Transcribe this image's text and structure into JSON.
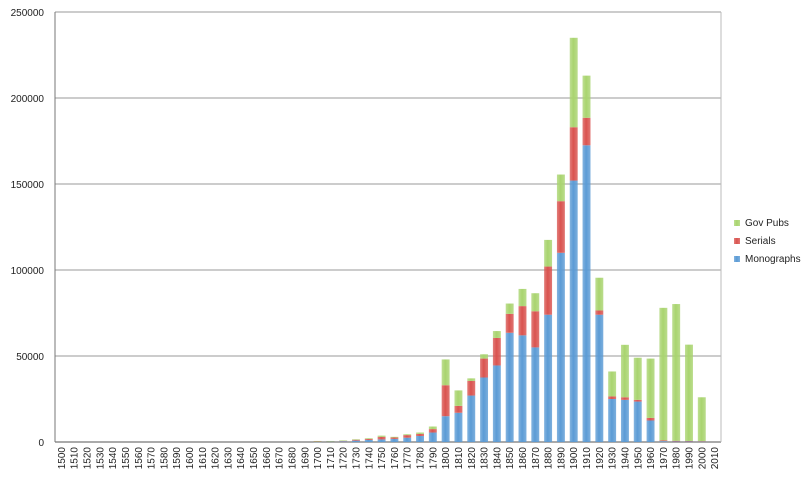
{
  "chart_data": {
    "type": "bar",
    "stacked": true,
    "title": "",
    "xlabel": "",
    "ylabel": "",
    "ylim": [
      0,
      250000
    ],
    "yticks": [
      0,
      50000,
      100000,
      150000,
      200000,
      250000
    ],
    "grid": true,
    "legend_position": "right",
    "categories": [
      "1500",
      "1510",
      "1520",
      "1530",
      "1540",
      "1550",
      "1560",
      "1570",
      "1580",
      "1590",
      "1600",
      "1610",
      "1620",
      "1630",
      "1640",
      "1650",
      "1660",
      "1670",
      "1680",
      "1690",
      "1700",
      "1710",
      "1720",
      "1730",
      "1740",
      "1750",
      "1760",
      "1770",
      "1780",
      "1790",
      "1800",
      "1810",
      "1820",
      "1830",
      "1840",
      "1850",
      "1860",
      "1870",
      "1880",
      "1890",
      "1900",
      "1910",
      "1920",
      "1930",
      "1940",
      "1950",
      "1960",
      "1970",
      "1980",
      "1990",
      "2000",
      "2010"
    ],
    "series": [
      {
        "name": "Monographs",
        "color": "#5b9bd5",
        "values": [
          0,
          0,
          0,
          0,
          0,
          0,
          0,
          0,
          0,
          0,
          0,
          0,
          0,
          0,
          0,
          0,
          0,
          0,
          0,
          0,
          200,
          300,
          400,
          800,
          1200,
          1500,
          1800,
          2500,
          3500,
          5500,
          15000,
          17000,
          27000,
          37500,
          44500,
          63500,
          62000,
          55000,
          74000,
          110000,
          152000,
          172500,
          74000,
          25000,
          24500,
          23500,
          12500,
          500,
          300,
          300,
          300,
          0
        ]
      },
      {
        "name": "Serials",
        "color": "#d9534f",
        "values": [
          0,
          0,
          0,
          0,
          0,
          0,
          0,
          0,
          0,
          0,
          0,
          0,
          0,
          0,
          0,
          0,
          0,
          0,
          0,
          0,
          200,
          200,
          300,
          500,
          600,
          1500,
          800,
          1500,
          1200,
          2000,
          18000,
          4000,
          8500,
          11000,
          16000,
          11000,
          17000,
          21000,
          28000,
          30000,
          31000,
          16000,
          2500,
          1500,
          1500,
          1000,
          1500,
          500,
          400,
          300,
          200,
          0
        ]
      },
      {
        "name": "Gov Pubs",
        "color": "#a9d46f",
        "values": [
          0,
          0,
          0,
          0,
          0,
          0,
          0,
          0,
          0,
          0,
          0,
          0,
          0,
          0,
          0,
          0,
          0,
          0,
          0,
          0,
          200,
          100,
          200,
          300,
          400,
          700,
          400,
          500,
          800,
          1500,
          15000,
          9000,
          1500,
          2500,
          4000,
          6000,
          10000,
          10500,
          15500,
          15500,
          52000,
          24500,
          19000,
          14500,
          30500,
          24500,
          34500,
          77000,
          79500,
          56000,
          25500,
          0
        ]
      }
    ]
  }
}
